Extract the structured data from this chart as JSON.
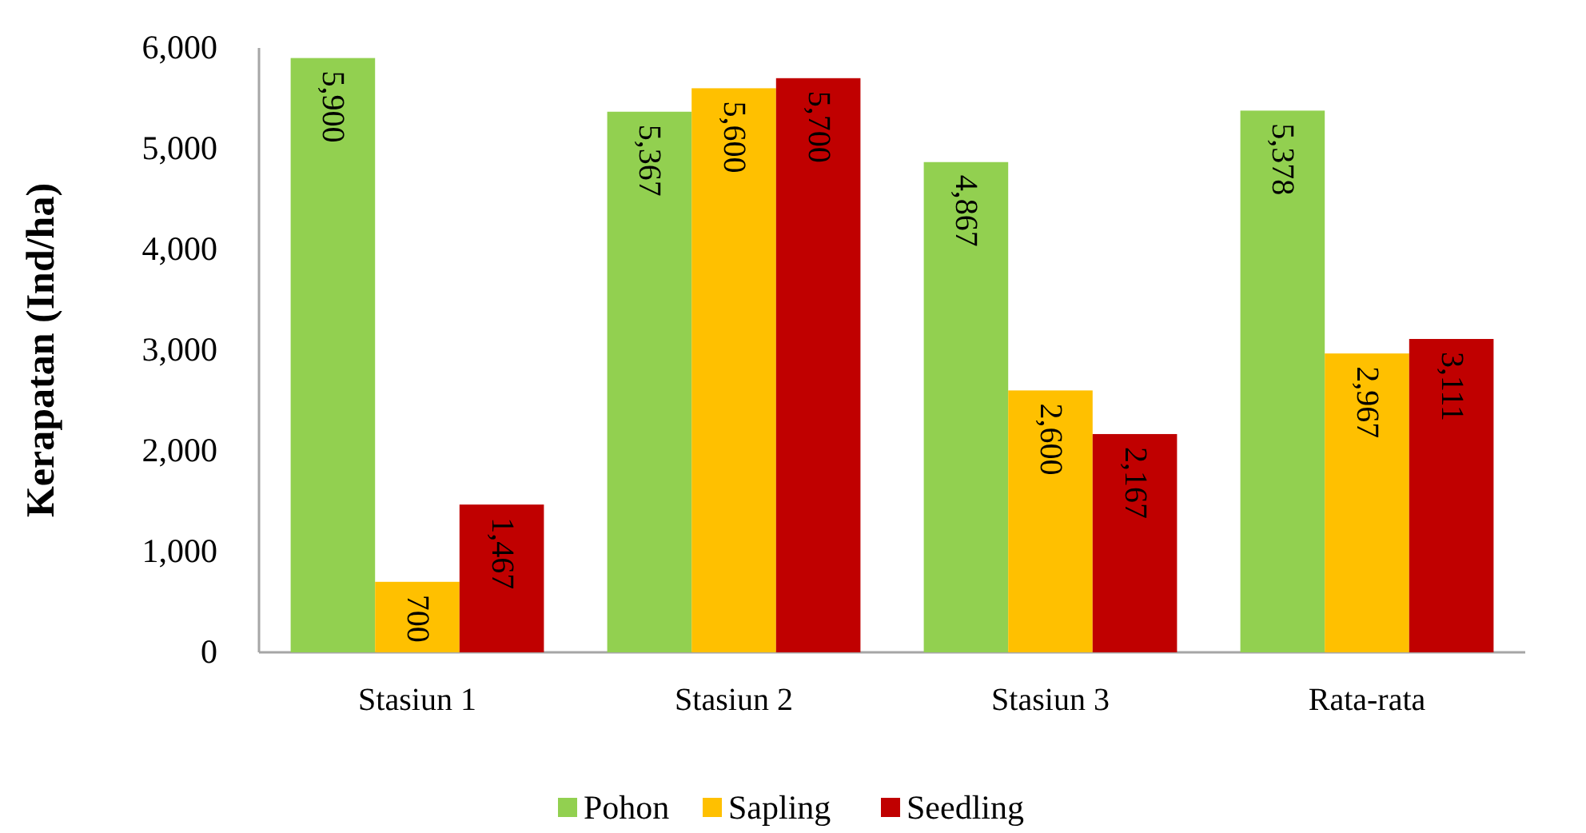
{
  "chart_data": {
    "type": "bar",
    "ylabel": "Kerapatan (Ind/ha)",
    "categories": [
      "Stasiun 1",
      "Stasiun 2",
      "Stasiun 3",
      "Rata-rata"
    ],
    "series": [
      {
        "name": "Pohon",
        "color": "#92d050",
        "values": [
          5900,
          5367,
          4867,
          5378
        ],
        "value_labels": [
          "5,900",
          "5,367",
          "4,867",
          "5,378"
        ]
      },
      {
        "name": "Sapling",
        "color": "#ffc000",
        "values": [
          700,
          5600,
          2600,
          2967
        ],
        "value_labels": [
          "700",
          "5,600",
          "2,600",
          "2,967"
        ]
      },
      {
        "name": "Seedling",
        "color": "#c00000",
        "values": [
          1467,
          5700,
          2167,
          3111
        ],
        "value_labels": [
          "1,467",
          "5,700",
          "2,167",
          "3,111"
        ]
      }
    ],
    "ylim": [
      0,
      6000
    ],
    "yticks": [
      0,
      {
        "value": 1000,
        "label": "1,000"
      },
      {
        "value": 2000,
        "label": "2,000"
      },
      {
        "value": 3000,
        "label": "3,000"
      },
      {
        "value": 4000,
        "label": "4,000"
      },
      {
        "value": 5000,
        "label": "5,000"
      },
      {
        "value": 6000,
        "label": "6,000"
      }
    ],
    "grid": false,
    "legend": "bottom"
  }
}
